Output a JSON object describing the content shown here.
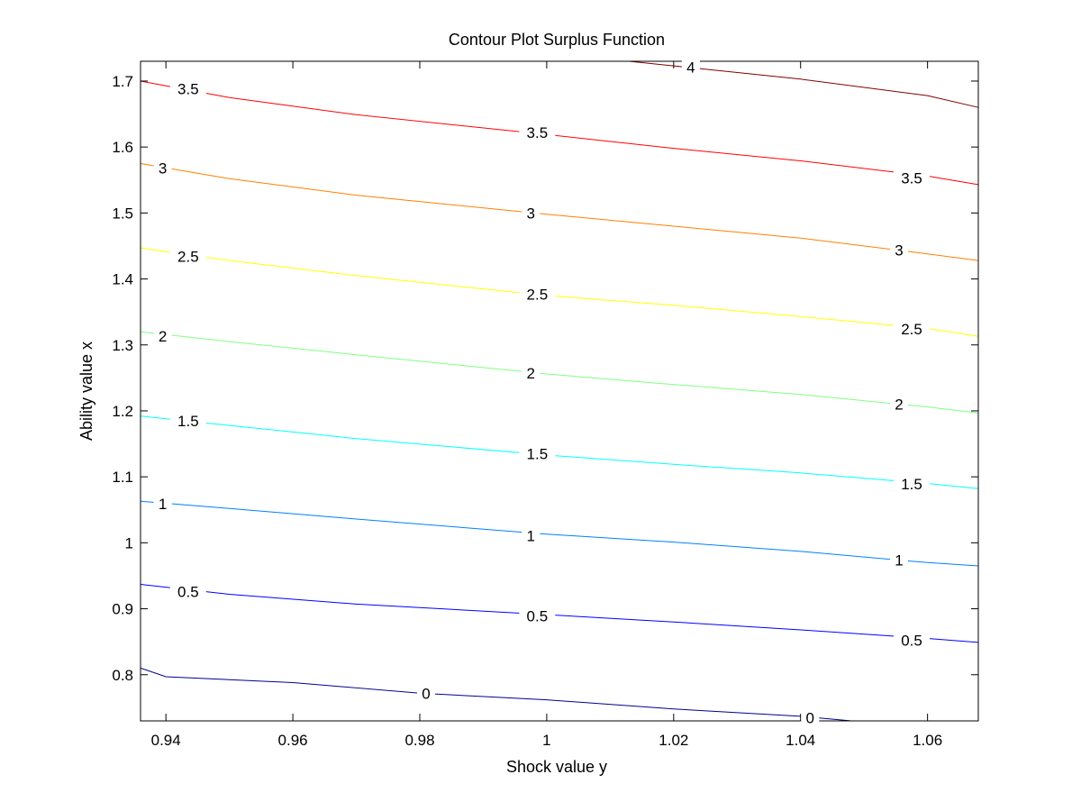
{
  "chart_data": {
    "type": "contour",
    "title": "Contour Plot Surplus Function",
    "xlabel": "Shock value y",
    "ylabel": "Ability value x",
    "xlim": [
      0.936,
      1.068
    ],
    "ylim": [
      0.73,
      1.73
    ],
    "xticks": [
      0.94,
      0.96,
      0.98,
      1,
      1.02,
      1.04,
      1.06
    ],
    "xtick_labels": [
      "0.94",
      "0.96",
      "0.98",
      "1",
      "1.02",
      "1.04",
      "1.06"
    ],
    "yticks": [
      0.8,
      0.9,
      1.0,
      1.1,
      1.2,
      1.3,
      1.4,
      1.5,
      1.6,
      1.7
    ],
    "ytick_labels": [
      "0.8",
      "0.9",
      "1",
      "1.1",
      "1.2",
      "1.3",
      "1.4",
      "1.5",
      "1.6",
      "1.7"
    ],
    "grid": false,
    "levels": [
      {
        "value": 0,
        "color": "#00008f",
        "points": [
          [
            0.936,
            0.81
          ],
          [
            0.94,
            0.797
          ],
          [
            0.96,
            0.788
          ],
          [
            0.98,
            0.772
          ],
          [
            1.0,
            0.762
          ],
          [
            1.02,
            0.748
          ],
          [
            1.04,
            0.737
          ],
          [
            1.048,
            0.73
          ]
        ],
        "labels": [
          {
            "text": "0",
            "x": 0.981,
            "y": 0.772
          },
          {
            "text": "0",
            "x": 1.0415,
            "y": 0.735
          }
        ]
      },
      {
        "value": 0.5,
        "color": "#0000ff",
        "points": [
          [
            0.936,
            0.937
          ],
          [
            0.95,
            0.922
          ],
          [
            0.97,
            0.907
          ],
          [
            1.0,
            0.891
          ],
          [
            1.02,
            0.88
          ],
          [
            1.04,
            0.868
          ],
          [
            1.06,
            0.855
          ],
          [
            1.068,
            0.849
          ]
        ],
        "labels": [
          {
            "text": "0.5",
            "x": 0.9435,
            "y": 0.926
          },
          {
            "text": "0.5",
            "x": 0.9985,
            "y": 0.889
          },
          {
            "text": "0.5",
            "x": 1.0575,
            "y": 0.852
          }
        ]
      },
      {
        "value": 1,
        "color": "#0080ff",
        "points": [
          [
            0.936,
            1.063
          ],
          [
            0.95,
            1.052
          ],
          [
            0.97,
            1.036
          ],
          [
            1.0,
            1.013
          ],
          [
            1.02,
            1.001
          ],
          [
            1.04,
            0.987
          ],
          [
            1.06,
            0.97
          ],
          [
            1.068,
            0.965
          ]
        ],
        "labels": [
          {
            "text": "1",
            "x": 0.9395,
            "y": 1.059
          },
          {
            "text": "1",
            "x": 0.9975,
            "y": 1.011
          },
          {
            "text": "1",
            "x": 1.0555,
            "y": 0.974
          }
        ]
      },
      {
        "value": 1.5,
        "color": "#00ffff",
        "points": [
          [
            0.936,
            1.192
          ],
          [
            0.95,
            1.178
          ],
          [
            0.97,
            1.158
          ],
          [
            1.0,
            1.133
          ],
          [
            1.02,
            1.119
          ],
          [
            1.04,
            1.106
          ],
          [
            1.06,
            1.09
          ],
          [
            1.068,
            1.082
          ]
        ],
        "labels": [
          {
            "text": "1.5",
            "x": 0.9435,
            "y": 1.185
          },
          {
            "text": "1.5",
            "x": 0.9985,
            "y": 1.135
          },
          {
            "text": "1.5",
            "x": 1.0575,
            "y": 1.089
          }
        ]
      },
      {
        "value": 2,
        "color": "#80ff80",
        "points": [
          [
            0.936,
            1.32
          ],
          [
            0.95,
            1.305
          ],
          [
            0.97,
            1.285
          ],
          [
            1.0,
            1.256
          ],
          [
            1.02,
            1.24
          ],
          [
            1.04,
            1.225
          ],
          [
            1.06,
            1.206
          ],
          [
            1.068,
            1.197
          ]
        ],
        "labels": [
          {
            "text": "2",
            "x": 0.9395,
            "y": 1.313
          },
          {
            "text": "2",
            "x": 0.9975,
            "y": 1.257
          },
          {
            "text": "2",
            "x": 1.0555,
            "y": 1.21
          }
        ]
      },
      {
        "value": 2.5,
        "color": "#ffff00",
        "points": [
          [
            0.936,
            1.447
          ],
          [
            0.95,
            1.428
          ],
          [
            0.97,
            1.405
          ],
          [
            1.0,
            1.375
          ],
          [
            1.02,
            1.36
          ],
          [
            1.04,
            1.343
          ],
          [
            1.06,
            1.325
          ],
          [
            1.068,
            1.313
          ]
        ],
        "labels": [
          {
            "text": "2.5",
            "x": 0.9435,
            "y": 1.434
          },
          {
            "text": "2.5",
            "x": 0.9985,
            "y": 1.377
          },
          {
            "text": "2.5",
            "x": 1.0575,
            "y": 1.324
          }
        ]
      },
      {
        "value": 3,
        "color": "#ff8000",
        "points": [
          [
            0.936,
            1.575
          ],
          [
            0.95,
            1.552
          ],
          [
            0.97,
            1.527
          ],
          [
            1.0,
            1.498
          ],
          [
            1.02,
            1.48
          ],
          [
            1.04,
            1.462
          ],
          [
            1.06,
            1.438
          ],
          [
            1.068,
            1.428
          ]
        ],
        "labels": [
          {
            "text": "3",
            "x": 0.9395,
            "y": 1.568
          },
          {
            "text": "3",
            "x": 0.9975,
            "y": 1.5
          },
          {
            "text": "3",
            "x": 1.0555,
            "y": 1.444
          }
        ]
      },
      {
        "value": 3.5,
        "color": "#ff0000",
        "points": [
          [
            0.936,
            1.7
          ],
          [
            0.95,
            1.675
          ],
          [
            0.97,
            1.649
          ],
          [
            1.0,
            1.619
          ],
          [
            1.02,
            1.598
          ],
          [
            1.04,
            1.579
          ],
          [
            1.06,
            1.556
          ],
          [
            1.068,
            1.543
          ]
        ],
        "labels": [
          {
            "text": "3.5",
            "x": 0.9435,
            "y": 1.688
          },
          {
            "text": "3.5",
            "x": 0.9985,
            "y": 1.622
          },
          {
            "text": "3.5",
            "x": 1.0575,
            "y": 1.553
          }
        ]
      },
      {
        "value": 4,
        "color": "#800000",
        "points": [
          [
            1.013,
            1.73
          ],
          [
            1.02,
            1.723
          ],
          [
            1.04,
            1.703
          ],
          [
            1.06,
            1.678
          ],
          [
            1.068,
            1.66
          ]
        ],
        "labels": [
          {
            "text": "4",
            "x": 1.0227,
            "y": 1.721
          }
        ]
      }
    ]
  }
}
